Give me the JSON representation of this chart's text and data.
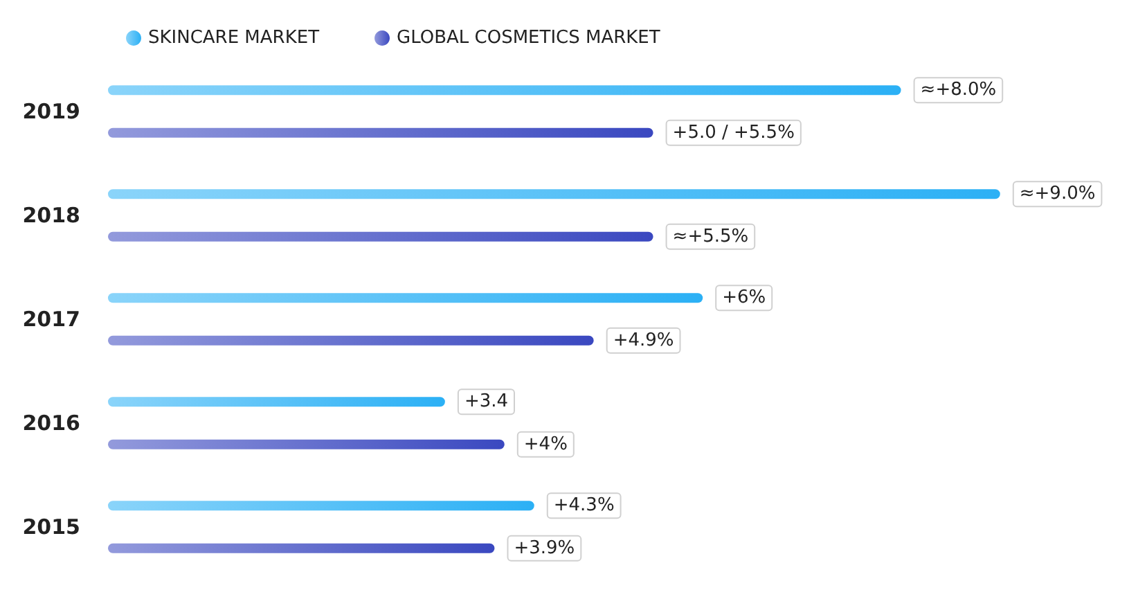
{
  "chart_data": {
    "type": "bar",
    "orientation": "horizontal",
    "categories": [
      "2019",
      "2018",
      "2017",
      "2016",
      "2015"
    ],
    "series": [
      {
        "name": "SKINCARE MARKET",
        "color": "#2bb0f5",
        "values": [
          8.0,
          9.0,
          6,
          3.4,
          4.3
        ],
        "value_labels": [
          "≈+8.0%",
          "≈+9.0%",
          "+6%",
          "+3.4",
          "+4.3%"
        ]
      },
      {
        "name": "GLOBAL COSMETICS MARKET",
        "color": "#3a48c0",
        "values": [
          5.5,
          5.5,
          4.9,
          4,
          3.9
        ],
        "value_labels": [
          "+5.0 / +5.5%",
          "≈+5.5%",
          "+4.9%",
          "+4%",
          "+3.9%"
        ]
      }
    ],
    "tick_labels": "y",
    "legend": "top left"
  }
}
